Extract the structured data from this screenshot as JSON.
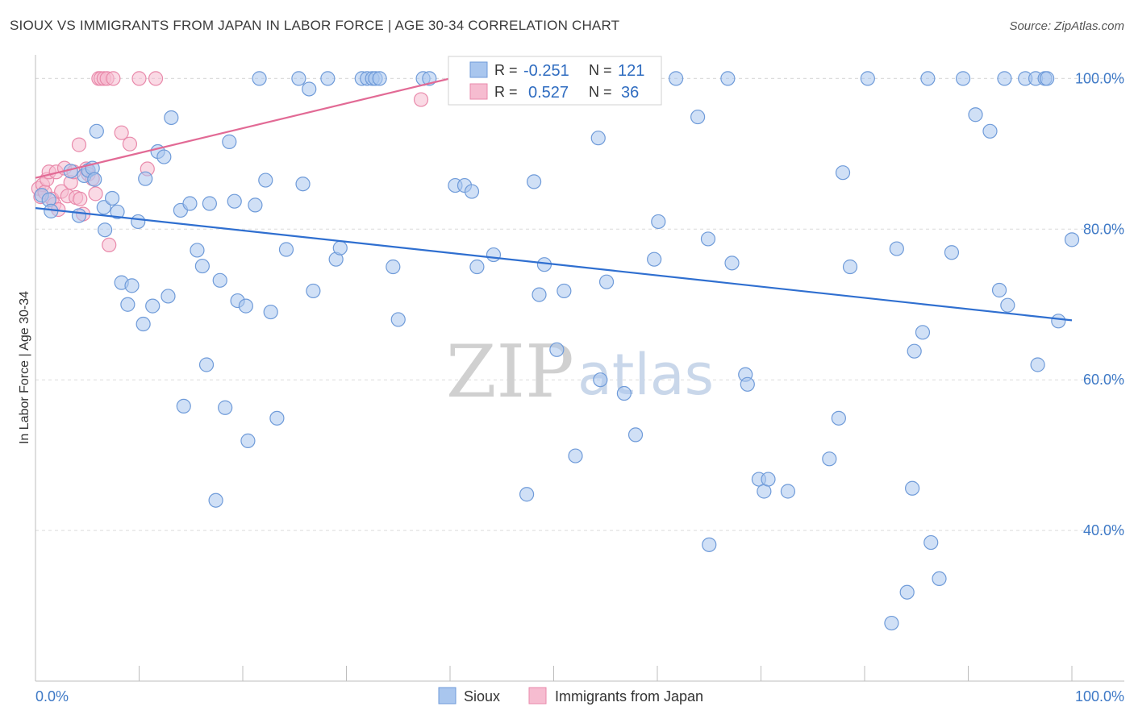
{
  "header": {
    "title": "SIOUX VS IMMIGRANTS FROM JAPAN IN LABOR FORCE | AGE 30-34 CORRELATION CHART",
    "source": "Source: ZipAtlas.com"
  },
  "colors": {
    "sioux_fill": "#a9c6ee",
    "sioux_stroke": "#6f9bd9",
    "sioux_line": "#2f6fd0",
    "japan_fill": "#f6bcd0",
    "japan_stroke": "#e98aab",
    "japan_line": "#e26a95",
    "axis_text": "#3e79c6",
    "grid": "#dcdcdc"
  },
  "legend_box": {
    "rows": [
      {
        "r_label": "R =",
        "r_value": "-0.251",
        "n_label": "N =",
        "n_value": "121"
      },
      {
        "r_label": "R =",
        "r_value": "0.527",
        "n_label": "N =",
        "n_value": "36"
      }
    ]
  },
  "bottom_legend": [
    "Sioux",
    "Immigrants from Japan"
  ],
  "watermark": {
    "part1": "ZIP",
    "part2": "atlas"
  },
  "chart_data": {
    "type": "scatter",
    "xlabel": "",
    "ylabel": "In Labor Force | Age 30-34",
    "xlim": [
      0,
      100
    ],
    "ylim": [
      20,
      104
    ],
    "x_tick_labels": [
      "0.0%",
      "100.0%"
    ],
    "y_tick_labels": [
      "40.0%",
      "60.0%",
      "80.0%",
      "100.0%"
    ],
    "y_ticks": [
      40,
      60,
      80,
      100
    ],
    "grid": true,
    "legend": "bottom-center",
    "series": [
      {
        "name": "Sioux",
        "r": -0.251,
        "n": 121,
        "trend": {
          "x": [
            0,
            100
          ],
          "y": [
            82.8,
            67.9
          ]
        },
        "points": [
          [
            0.6,
            84.5
          ],
          [
            1.3,
            83.9
          ],
          [
            1.5,
            82.4
          ],
          [
            3.4,
            87.7
          ],
          [
            4.2,
            81.8
          ],
          [
            4.7,
            87.1
          ],
          [
            5.1,
            87.8
          ],
          [
            5.5,
            88.1
          ],
          [
            5.7,
            86.6
          ],
          [
            5.9,
            93.0
          ],
          [
            6.6,
            82.9
          ],
          [
            6.7,
            79.9
          ],
          [
            7.4,
            84.1
          ],
          [
            7.9,
            82.3
          ],
          [
            8.3,
            72.9
          ],
          [
            8.9,
            70.0
          ],
          [
            9.3,
            72.5
          ],
          [
            9.9,
            81.0
          ],
          [
            10.4,
            67.4
          ],
          [
            10.6,
            86.7
          ],
          [
            11.3,
            69.8
          ],
          [
            11.8,
            90.3
          ],
          [
            12.4,
            89.6
          ],
          [
            12.8,
            71.1
          ],
          [
            13.1,
            94.8
          ],
          [
            14.0,
            82.5
          ],
          [
            14.3,
            56.5
          ],
          [
            14.9,
            83.4
          ],
          [
            15.6,
            77.2
          ],
          [
            16.1,
            75.1
          ],
          [
            16.5,
            62.0
          ],
          [
            16.8,
            83.4
          ],
          [
            17.4,
            44.0
          ],
          [
            17.8,
            73.2
          ],
          [
            18.3,
            56.3
          ],
          [
            18.7,
            91.6
          ],
          [
            19.2,
            83.7
          ],
          [
            19.5,
            70.5
          ],
          [
            20.3,
            69.8
          ],
          [
            20.5,
            51.9
          ],
          [
            21.2,
            83.2
          ],
          [
            21.6,
            100.0
          ],
          [
            22.2,
            86.5
          ],
          [
            22.7,
            69.0
          ],
          [
            23.3,
            54.9
          ],
          [
            24.2,
            77.3
          ],
          [
            25.4,
            100.0
          ],
          [
            25.8,
            86.0
          ],
          [
            26.4,
            98.6
          ],
          [
            26.8,
            71.8
          ],
          [
            28.2,
            100.0
          ],
          [
            29.0,
            76.0
          ],
          [
            29.4,
            77.5
          ],
          [
            31.5,
            100.0
          ],
          [
            32.0,
            100.0
          ],
          [
            32.5,
            100.0
          ],
          [
            32.8,
            100.0
          ],
          [
            33.2,
            100.0
          ],
          [
            34.5,
            75.0
          ],
          [
            35.0,
            68.0
          ],
          [
            37.4,
            100.0
          ],
          [
            40.5,
            85.8
          ],
          [
            41.4,
            85.8
          ],
          [
            42.1,
            85.0
          ],
          [
            42.6,
            75.0
          ],
          [
            44.2,
            76.6
          ],
          [
            47.0,
            100.0
          ],
          [
            47.4,
            44.8
          ],
          [
            48.1,
            86.3
          ],
          [
            48.6,
            71.3
          ],
          [
            49.1,
            75.3
          ],
          [
            50.3,
            64.0
          ],
          [
            51.0,
            71.8
          ],
          [
            52.1,
            49.9
          ],
          [
            53.0,
            100.0
          ],
          [
            54.3,
            92.1
          ],
          [
            54.5,
            60.0
          ],
          [
            55.1,
            73.0
          ],
          [
            56.0,
            100.0
          ],
          [
            56.8,
            58.2
          ],
          [
            57.9,
            52.7
          ],
          [
            60.1,
            81.0
          ],
          [
            59.7,
            76.0
          ],
          [
            61.8,
            100.0
          ],
          [
            63.9,
            94.9
          ],
          [
            64.9,
            78.7
          ],
          [
            65.0,
            38.1
          ],
          [
            66.8,
            100.0
          ],
          [
            67.2,
            75.5
          ],
          [
            68.5,
            60.7
          ],
          [
            68.7,
            59.4
          ],
          [
            69.8,
            46.8
          ],
          [
            70.3,
            45.2
          ],
          [
            70.7,
            46.8
          ],
          [
            72.6,
            45.2
          ],
          [
            76.6,
            49.5
          ],
          [
            77.5,
            54.9
          ],
          [
            77.9,
            87.5
          ],
          [
            78.6,
            75.0
          ],
          [
            80.3,
            100.0
          ],
          [
            82.6,
            27.7
          ],
          [
            83.1,
            77.4
          ],
          [
            84.1,
            31.8
          ],
          [
            84.6,
            45.6
          ],
          [
            84.8,
            63.8
          ],
          [
            85.6,
            66.3
          ],
          [
            86.1,
            100.0
          ],
          [
            86.4,
            38.4
          ],
          [
            87.2,
            33.6
          ],
          [
            88.4,
            76.9
          ],
          [
            89.5,
            100.0
          ],
          [
            90.7,
            95.2
          ],
          [
            92.1,
            93.0
          ],
          [
            93.0,
            71.9
          ],
          [
            93.5,
            100.0
          ],
          [
            93.8,
            69.9
          ],
          [
            95.5,
            100.0
          ],
          [
            96.5,
            100.0
          ],
          [
            96.7,
            62.0
          ],
          [
            97.4,
            100.0
          ],
          [
            98.7,
            67.8
          ],
          [
            100.0,
            78.6
          ],
          [
            97.6,
            100.0
          ],
          [
            45.5,
            100.0
          ],
          [
            38.0,
            100.0
          ]
        ]
      },
      {
        "name": "Immigrants from Japan",
        "r": 0.527,
        "n": 36,
        "trend": {
          "x": [
            0,
            40
          ],
          "y": [
            86.8,
            100
          ]
        },
        "points": [
          [
            0.3,
            85.4
          ],
          [
            0.5,
            84.3
          ],
          [
            0.7,
            85.9
          ],
          [
            0.9,
            84.9
          ],
          [
            1.1,
            86.6
          ],
          [
            1.3,
            87.6
          ],
          [
            1.6,
            84.0
          ],
          [
            1.8,
            83.3
          ],
          [
            2.0,
            87.6
          ],
          [
            2.2,
            82.6
          ],
          [
            2.5,
            85.0
          ],
          [
            2.8,
            88.1
          ],
          [
            3.1,
            84.4
          ],
          [
            3.4,
            86.2
          ],
          [
            3.7,
            87.6
          ],
          [
            3.9,
            84.2
          ],
          [
            4.2,
            91.2
          ],
          [
            4.3,
            84.0
          ],
          [
            4.6,
            82.0
          ],
          [
            4.9,
            88.0
          ],
          [
            5.1,
            87.3
          ],
          [
            5.5,
            86.7
          ],
          [
            5.8,
            84.7
          ],
          [
            6.1,
            100.0
          ],
          [
            6.3,
            100.0
          ],
          [
            6.6,
            100.0
          ],
          [
            6.9,
            100.0
          ],
          [
            7.1,
            77.9
          ],
          [
            7.5,
            100.0
          ],
          [
            8.3,
            92.8
          ],
          [
            9.1,
            91.3
          ],
          [
            10.0,
            100.0
          ],
          [
            10.8,
            88.0
          ],
          [
            11.6,
            100.0
          ],
          [
            37.2,
            97.2
          ],
          [
            53.1,
            100.0
          ]
        ]
      }
    ]
  }
}
